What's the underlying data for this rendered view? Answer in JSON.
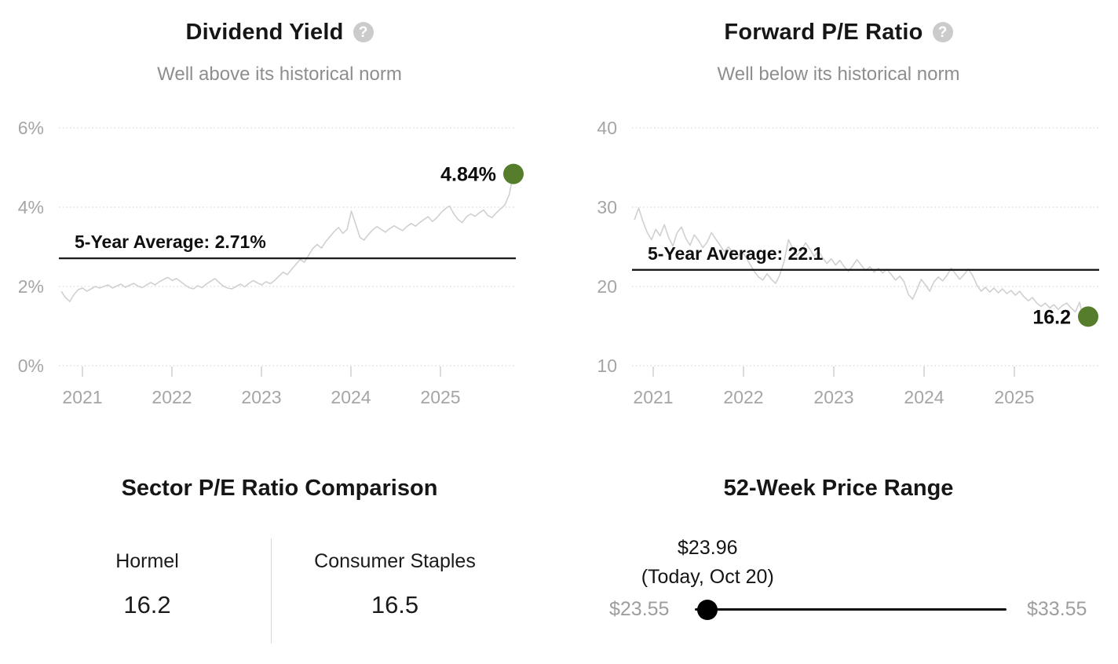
{
  "panels": {
    "dividend_yield": {
      "title": "Dividend Yield",
      "help_glyph": "?",
      "subtitle": "Well above its historical norm"
    },
    "forward_pe": {
      "title": "Forward P/E Ratio",
      "help_glyph": "?",
      "subtitle": "Well below its historical norm"
    },
    "sector_comparison": {
      "title": "Sector P/E Ratio Comparison",
      "items": [
        {
          "label": "Hormel",
          "value": "16.2"
        },
        {
          "label": "Consumer Staples",
          "value": "16.5"
        }
      ]
    },
    "price_range": {
      "title": "52-Week Price Range",
      "current_price": "$23.96",
      "current_note": "(Today, Oct 20)",
      "low_label": "$23.55",
      "high_label": "$33.55",
      "low_value": 23.55,
      "high_value": 33.55,
      "current_value": 23.96
    }
  },
  "colors": {
    "accent_green": "#567d2b",
    "series_gray": "#d0d0d0",
    "grid_gray": "#d8d8d8",
    "muted_text": "#9e9e9e",
    "average_line": "#1a1a1a"
  },
  "chart_data": [
    {
      "type": "line",
      "name": "dividend-yield",
      "title": "Dividend Yield",
      "series_name": "Hormel dividend yield",
      "x_range": [
        2020.75,
        2025.85
      ],
      "xticks": [
        2021,
        2022,
        2023,
        2024,
        2025
      ],
      "xtick_labels": [
        "2021",
        "2022",
        "2023",
        "2024",
        "2025"
      ],
      "ylim": [
        0,
        6
      ],
      "yticks": [
        0,
        2,
        4,
        6
      ],
      "ytick_labels": [
        "0%",
        "2%",
        "4%",
        "6%"
      ],
      "grid": "horizontal-dotted",
      "legend": "none",
      "average": 2.71,
      "average_label": "5-Year Average: 2.71%",
      "end_value": 4.84,
      "end_label": "4.84%",
      "values": [
        1.88,
        1.72,
        1.62,
        1.8,
        1.92,
        1.96,
        1.88,
        1.94,
        2.0,
        1.96,
        2.0,
        2.04,
        1.96,
        2.01,
        2.06,
        1.98,
        2.03,
        2.08,
        2.01,
        1.97,
        2.04,
        2.1,
        2.04,
        2.12,
        2.18,
        2.23,
        2.15,
        2.2,
        2.12,
        2.04,
        1.97,
        1.94,
        2.02,
        1.97,
        2.06,
        2.13,
        2.2,
        2.1,
        2.01,
        1.96,
        1.94,
        2.0,
        2.06,
        1.99,
        2.08,
        2.15,
        2.09,
        2.04,
        2.12,
        2.07,
        2.15,
        2.26,
        2.36,
        2.3,
        2.43,
        2.56,
        2.68,
        2.61,
        2.79,
        2.96,
        3.06,
        2.97,
        3.13,
        3.26,
        3.39,
        3.49,
        3.34,
        3.44,
        3.9,
        3.58,
        3.24,
        3.17,
        3.31,
        3.43,
        3.51,
        3.44,
        3.37,
        3.46,
        3.53,
        3.47,
        3.41,
        3.51,
        3.59,
        3.52,
        3.61,
        3.69,
        3.76,
        3.64,
        3.73,
        3.86,
        3.96,
        4.03,
        3.84,
        3.69,
        3.61,
        3.76,
        3.83,
        3.77,
        3.86,
        3.93,
        3.79,
        3.74,
        3.86,
        3.96,
        4.06,
        4.32,
        4.84
      ]
    },
    {
      "type": "line",
      "name": "forward-pe",
      "title": "Forward P/E Ratio",
      "series_name": "Hormel forward P/E",
      "x_range": [
        2020.77,
        2025.82
      ],
      "xticks": [
        2021,
        2022,
        2023,
        2024,
        2025
      ],
      "xtick_labels": [
        "2021",
        "2022",
        "2023",
        "2024",
        "2025"
      ],
      "ylim": [
        10,
        40
      ],
      "yticks": [
        10,
        20,
        30,
        40
      ],
      "ytick_labels": [
        "10",
        "20",
        "30",
        "40"
      ],
      "grid": "horizontal-dotted",
      "legend": "none",
      "average": 22.1,
      "average_label": "5-Year Average: 22.1",
      "end_value": 16.2,
      "end_label": "16.2",
      "values": [
        28.4,
        29.9,
        28.2,
        26.8,
        25.9,
        27.2,
        26.4,
        27.8,
        26.2,
        25.1,
        26.8,
        27.5,
        26.1,
        25.2,
        26.5,
        25.8,
        24.9,
        25.6,
        26.8,
        26.0,
        25.2,
        24.4,
        25.0,
        24.2,
        23.6,
        24.4,
        23.8,
        22.8,
        21.9,
        21.2,
        20.8,
        21.6,
        20.9,
        20.4,
        21.5,
        23.2,
        25.9,
        24.8,
        23.9,
        24.6,
        25.5,
        24.7,
        23.8,
        24.5,
        23.6,
        22.9,
        23.5,
        22.7,
        23.3,
        22.5,
        21.9,
        22.6,
        23.4,
        22.7,
        22.0,
        22.5,
        21.8,
        22.3,
        21.7,
        22.2,
        21.5,
        20.8,
        21.3,
        20.6,
        19.0,
        18.4,
        19.6,
        20.9,
        20.2,
        19.4,
        20.6,
        21.2,
        20.7,
        21.4,
        22.3,
        21.6,
        20.9,
        21.5,
        22.2,
        21.4,
        20.2,
        19.4,
        19.9,
        19.3,
        19.8,
        19.2,
        19.7,
        19.1,
        19.5,
        18.9,
        19.4,
        18.7,
        18.2,
        18.6,
        17.9,
        17.5,
        17.9,
        17.3,
        17.7,
        17.1,
        17.6,
        17.9,
        17.3,
        16.8,
        18.0,
        15.6,
        16.2
      ]
    }
  ]
}
